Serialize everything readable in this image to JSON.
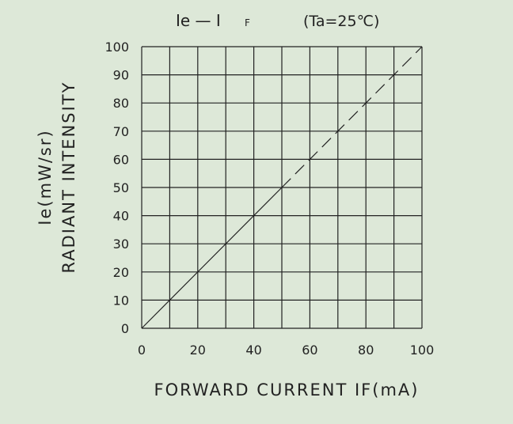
{
  "chart_data": {
    "type": "line",
    "title": {
      "main": "Ie  —  I",
      "sub": "F",
      "condition": "(Ta=25℃)"
    },
    "xlabel": "FORWARD CURRENT  IF(mA)",
    "ylabel_line1": "Ie(mW/sr)",
    "ylabel_line2": "RADIANT INTENSITY",
    "xlim": [
      0,
      100
    ],
    "ylim": [
      0,
      100
    ],
    "x_ticks": [
      0,
      20,
      40,
      60,
      80,
      100
    ],
    "y_ticks": [
      0,
      10,
      20,
      30,
      40,
      50,
      60,
      70,
      80,
      90,
      100
    ],
    "grid": true,
    "grid_x_step": 10,
    "grid_y_step": 10,
    "series": [
      {
        "style": "solid",
        "x": [
          0,
          50
        ],
        "y": [
          0,
          50
        ]
      },
      {
        "style": "dashed",
        "x": [
          50,
          100
        ],
        "y": [
          50,
          100
        ]
      }
    ],
    "colors": {
      "background": "#dde8d8",
      "line": "#222222",
      "grid": "#222222"
    }
  }
}
